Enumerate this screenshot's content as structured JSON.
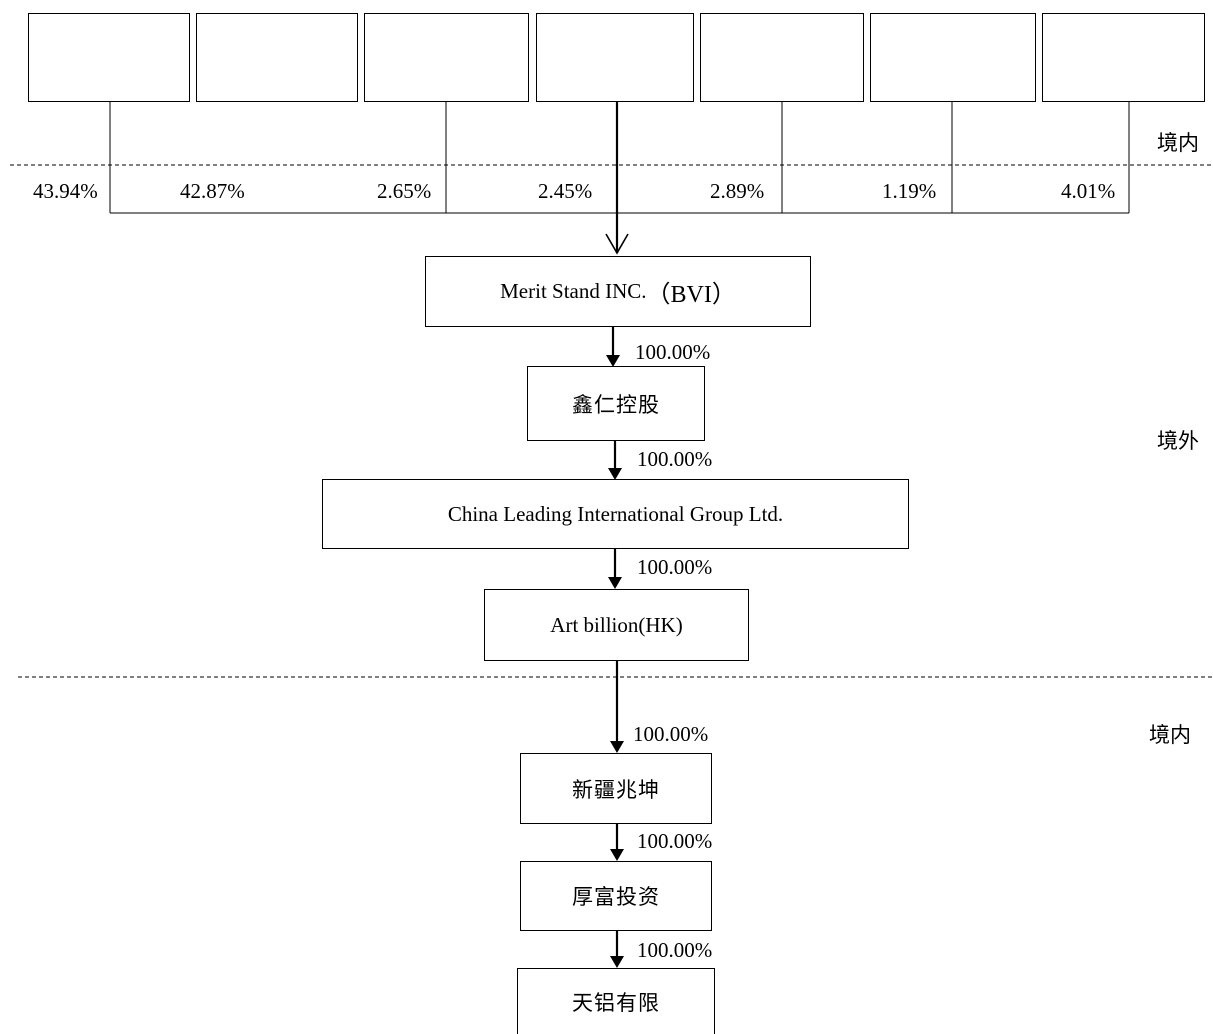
{
  "zones": {
    "top_domestic": "境内",
    "offshore": "境外",
    "bottom_domestic": "境内"
  },
  "shareholders": [
    {
      "name": "",
      "pct": "43.94%"
    },
    {
      "name": "",
      "pct": "42.87%"
    },
    {
      "name": "",
      "pct": "2.65%"
    },
    {
      "name": "",
      "pct": "2.45%"
    },
    {
      "name": "",
      "pct": "2.89%"
    },
    {
      "name": "",
      "pct": "1.19%"
    },
    {
      "name": "",
      "pct": "4.01%"
    }
  ],
  "entities": [
    {
      "name_en": "Merit Stand INC.",
      "name_suffix": "（BVI）",
      "ownership_in": ""
    },
    {
      "name": "鑫仁控股",
      "ownership_in": "100.00%"
    },
    {
      "name": "China Leading International Group  Ltd.",
      "ownership_in": "100.00%"
    },
    {
      "name": "Art billion(HK)",
      "ownership_in": "100.00%"
    },
    {
      "name": "新疆兆坤",
      "ownership_in": "100.00%"
    },
    {
      "name": "厚富投资",
      "ownership_in": "100.00%"
    },
    {
      "name": "天铝有限",
      "ownership_in": "100.00%"
    }
  ]
}
